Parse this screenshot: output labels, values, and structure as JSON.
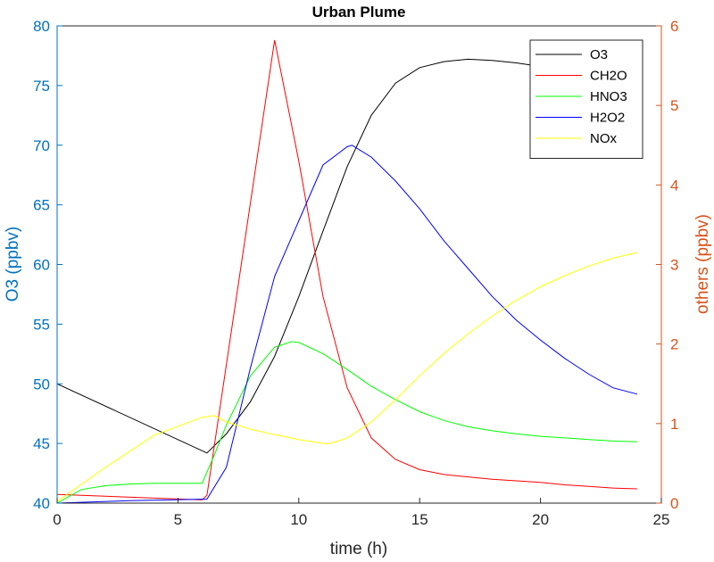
{
  "chart_data": {
    "type": "line",
    "title": "Urban Plume",
    "xlabel": "time (h)",
    "ylabel_left": "O3 (ppbv)",
    "ylabel_right": "others (ppbv)",
    "xlim": [
      0,
      25
    ],
    "ylim_left": [
      40,
      80
    ],
    "ylim_right": [
      0,
      6
    ],
    "x_ticks": [
      0,
      5,
      10,
      15,
      20,
      25
    ],
    "y_ticks_left": [
      40,
      45,
      50,
      55,
      60,
      65,
      70,
      75,
      80
    ],
    "y_ticks_right": [
      0,
      1,
      2,
      3,
      4,
      5,
      6
    ],
    "grid": false,
    "legend_position": "top-right",
    "axis_colors": {
      "left": "#0072BD",
      "right": "#D95319"
    },
    "series": [
      {
        "name": "O3",
        "axis": "left",
        "color": "#000000",
        "x": [
          0,
          6.2,
          7,
          8,
          9,
          10,
          11,
          12,
          13,
          14,
          15,
          16,
          17,
          18,
          19,
          20,
          21,
          22,
          23,
          24
        ],
        "y": [
          50,
          44.2,
          45.8,
          48.5,
          52.3,
          57.3,
          62.8,
          68.2,
          72.5,
          75.2,
          76.5,
          77,
          77.2,
          77.1,
          76.9,
          76.6,
          76.3,
          76.1,
          75.9,
          75.8
        ]
      },
      {
        "name": "CH2O",
        "axis": "right",
        "color": "#FF0000",
        "x": [
          0,
          6.0,
          6.2,
          9.0,
          10,
          11,
          12,
          13,
          14,
          15,
          16,
          17,
          18,
          19,
          20,
          21,
          22,
          23,
          24
        ],
        "y": [
          0.11,
          0.04,
          0.1,
          5.82,
          4.3,
          2.6,
          1.45,
          0.82,
          0.55,
          0.42,
          0.36,
          0.33,
          0.3,
          0.28,
          0.26,
          0.23,
          0.21,
          0.19,
          0.18
        ]
      },
      {
        "name": "HNO3",
        "axis": "right",
        "color": "#00FF00",
        "x": [
          0,
          1,
          2,
          3,
          4,
          5,
          6.0,
          6.5,
          7,
          8,
          9,
          9.7,
          10,
          11,
          12,
          13,
          14,
          15,
          16,
          17,
          18,
          19,
          20,
          21,
          22,
          23,
          24
        ],
        "y": [
          0.0,
          0.17,
          0.22,
          0.24,
          0.25,
          0.25,
          0.25,
          0.6,
          0.98,
          1.6,
          1.96,
          2.03,
          2.02,
          1.88,
          1.68,
          1.47,
          1.3,
          1.15,
          1.04,
          0.96,
          0.91,
          0.87,
          0.84,
          0.82,
          0.8,
          0.78,
          0.77
        ]
      },
      {
        "name": "H2O2",
        "axis": "right",
        "color": "#0000FF",
        "x": [
          0,
          3,
          6.2,
          7,
          8,
          9,
          10,
          11,
          12,
          12.2,
          13,
          14,
          15,
          16,
          17,
          18,
          19,
          20,
          21,
          22,
          23,
          24
        ],
        "y": [
          0.0,
          0.03,
          0.05,
          0.45,
          1.7,
          2.85,
          3.55,
          4.25,
          4.48,
          4.5,
          4.35,
          4.05,
          3.7,
          3.3,
          2.95,
          2.6,
          2.3,
          2.05,
          1.82,
          1.62,
          1.45,
          1.37
        ]
      },
      {
        "name": "NOx",
        "axis": "right",
        "color": "#FFFF00",
        "x": [
          0,
          2,
          4,
          6,
          6.5,
          7,
          8,
          9,
          10,
          11,
          11.3,
          12,
          13,
          14,
          15,
          16,
          17,
          18,
          19,
          20,
          21,
          22,
          23,
          24
        ],
        "y": [
          0.02,
          0.45,
          0.85,
          1.08,
          1.1,
          1.02,
          0.93,
          0.86,
          0.8,
          0.75,
          0.75,
          0.82,
          1.02,
          1.3,
          1.6,
          1.88,
          2.13,
          2.35,
          2.55,
          2.72,
          2.86,
          2.98,
          3.08,
          3.15
        ]
      }
    ]
  }
}
